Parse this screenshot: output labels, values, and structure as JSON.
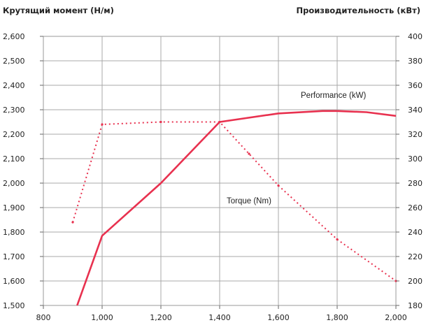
{
  "chart_data": {
    "type": "line",
    "ylabel_left": "Крутящий момент (Н/м)",
    "ylabel_right": "Производительность (кВт)",
    "xlim": [
      800,
      2000
    ],
    "ylim_left": [
      1500,
      2600
    ],
    "ylim_right": [
      180,
      400
    ],
    "x_ticks": [
      "800",
      "1,000",
      "1,200",
      "1,400",
      "1,600",
      "1,800",
      "2,000"
    ],
    "y_left_ticks": [
      "2,600",
      "2,500",
      "2,400",
      "2,300",
      "2,200",
      "2,100",
      "2,000",
      "1,900",
      "1,800",
      "1,700",
      "1,600",
      "1,500"
    ],
    "y_right_ticks": [
      "400",
      "380",
      "360",
      "340",
      "320",
      "300",
      "280",
      "260",
      "240",
      "220",
      "200",
      "180"
    ],
    "grid": true,
    "series": [
      {
        "name": "Performance (kW)",
        "axis": "right",
        "style": "solid",
        "color": "#e8314f",
        "points": [
          [
            915,
            180
          ],
          [
            1000,
            237
          ],
          [
            1200,
            280
          ],
          [
            1400,
            330
          ],
          [
            1600,
            337
          ],
          [
            1750,
            339
          ],
          [
            1800,
            339
          ],
          [
            1900,
            338
          ],
          [
            2000,
            335
          ]
        ]
      },
      {
        "name": "Torque (Nm)",
        "axis": "left",
        "style": "dotted",
        "color": "#e8314f",
        "points": [
          [
            900,
            1840
          ],
          [
            1000,
            2240
          ],
          [
            1200,
            2250
          ],
          [
            1400,
            2250
          ],
          [
            1500,
            2120
          ],
          [
            1600,
            1990
          ],
          [
            1800,
            1770
          ],
          [
            2000,
            1600
          ]
        ]
      }
    ]
  }
}
